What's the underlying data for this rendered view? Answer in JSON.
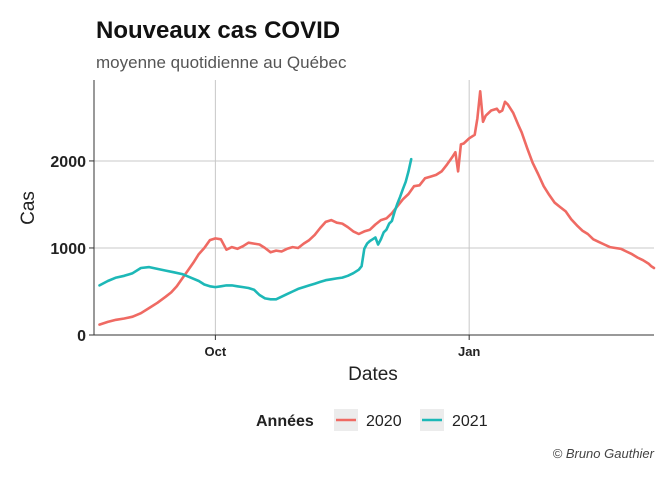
{
  "chart_data": {
    "type": "line",
    "title": "Nouveaux cas COVID",
    "subtitle": "moyenne quotidienne au Québec",
    "xlabel": "Dates",
    "ylabel": "Cas",
    "x_unit": "days from Aug 18 to Mar 8 (season-aligned)",
    "xlim": [
      0,
      203
    ],
    "ylim": [
      0,
      2930
    ],
    "y_ticks": [
      0,
      1000,
      2000
    ],
    "x_ticks": [
      {
        "value": 44,
        "label": "Oct"
      },
      {
        "value": 136,
        "label": "Jan"
      }
    ],
    "grid": true,
    "legend": {
      "title": "Années",
      "position": "bottom"
    },
    "caption": "© Bruno Gauthier",
    "series": [
      {
        "name": "2020",
        "color": "#ef6a63",
        "points": [
          [
            2,
            120
          ],
          [
            5,
            150
          ],
          [
            8,
            175
          ],
          [
            11,
            190
          ],
          [
            14,
            210
          ],
          [
            17,
            250
          ],
          [
            20,
            310
          ],
          [
            23,
            370
          ],
          [
            26,
            440
          ],
          [
            28,
            490
          ],
          [
            30,
            560
          ],
          [
            32,
            650
          ],
          [
            34,
            740
          ],
          [
            36,
            830
          ],
          [
            38,
            930
          ],
          [
            40,
            1000
          ],
          [
            42,
            1090
          ],
          [
            44,
            1110
          ],
          [
            46,
            1100
          ],
          [
            48,
            980
          ],
          [
            50,
            1010
          ],
          [
            52,
            990
          ],
          [
            54,
            1020
          ],
          [
            56,
            1060
          ],
          [
            58,
            1050
          ],
          [
            60,
            1040
          ],
          [
            62,
            1000
          ],
          [
            64,
            950
          ],
          [
            66,
            970
          ],
          [
            68,
            960
          ],
          [
            70,
            990
          ],
          [
            72,
            1010
          ],
          [
            74,
            1000
          ],
          [
            76,
            1050
          ],
          [
            78,
            1090
          ],
          [
            80,
            1150
          ],
          [
            82,
            1230
          ],
          [
            84,
            1300
          ],
          [
            86,
            1320
          ],
          [
            88,
            1290
          ],
          [
            90,
            1280
          ],
          [
            92,
            1240
          ],
          [
            94,
            1190
          ],
          [
            96,
            1160
          ],
          [
            98,
            1190
          ],
          [
            100,
            1210
          ],
          [
            102,
            1270
          ],
          [
            104,
            1320
          ],
          [
            106,
            1340
          ],
          [
            108,
            1400
          ],
          [
            110,
            1480
          ],
          [
            112,
            1560
          ],
          [
            114,
            1620
          ],
          [
            116,
            1710
          ],
          [
            118,
            1720
          ],
          [
            120,
            1800
          ],
          [
            122,
            1820
          ],
          [
            124,
            1840
          ],
          [
            126,
            1880
          ],
          [
            128,
            1960
          ],
          [
            130,
            2050
          ],
          [
            131,
            2100
          ],
          [
            132,
            1880
          ],
          [
            133,
            2190
          ],
          [
            134,
            2200
          ],
          [
            136,
            2260
          ],
          [
            138,
            2300
          ],
          [
            139,
            2490
          ],
          [
            140,
            2800
          ],
          [
            141,
            2450
          ],
          [
            142,
            2520
          ],
          [
            144,
            2580
          ],
          [
            146,
            2600
          ],
          [
            147,
            2560
          ],
          [
            148,
            2580
          ],
          [
            149,
            2680
          ],
          [
            150,
            2650
          ],
          [
            152,
            2550
          ],
          [
            154,
            2400
          ],
          [
            155,
            2330
          ],
          [
            157,
            2150
          ],
          [
            159,
            1980
          ],
          [
            161,
            1850
          ],
          [
            163,
            1710
          ],
          [
            165,
            1610
          ],
          [
            167,
            1520
          ],
          [
            169,
            1470
          ],
          [
            171,
            1420
          ],
          [
            173,
            1330
          ],
          [
            175,
            1260
          ],
          [
            177,
            1200
          ],
          [
            179,
            1160
          ],
          [
            181,
            1100
          ],
          [
            183,
            1070
          ],
          [
            185,
            1040
          ],
          [
            187,
            1010
          ],
          [
            189,
            1000
          ],
          [
            191,
            990
          ],
          [
            193,
            960
          ],
          [
            195,
            930
          ],
          [
            197,
            890
          ],
          [
            199,
            860
          ],
          [
            201,
            820
          ],
          [
            202,
            790
          ],
          [
            203,
            770
          ]
        ]
      },
      {
        "name": "2021",
        "color": "#1db8b7",
        "points": [
          [
            2,
            570
          ],
          [
            5,
            620
          ],
          [
            8,
            660
          ],
          [
            11,
            680
          ],
          [
            14,
            710
          ],
          [
            17,
            770
          ],
          [
            20,
            780
          ],
          [
            23,
            760
          ],
          [
            26,
            740
          ],
          [
            29,
            720
          ],
          [
            32,
            700
          ],
          [
            35,
            660
          ],
          [
            38,
            620
          ],
          [
            40,
            580
          ],
          [
            42,
            560
          ],
          [
            44,
            550
          ],
          [
            46,
            560
          ],
          [
            48,
            570
          ],
          [
            50,
            570
          ],
          [
            52,
            560
          ],
          [
            54,
            550
          ],
          [
            56,
            540
          ],
          [
            58,
            520
          ],
          [
            59,
            490
          ],
          [
            60,
            460
          ],
          [
            62,
            420
          ],
          [
            64,
            410
          ],
          [
            66,
            410
          ],
          [
            68,
            440
          ],
          [
            70,
            470
          ],
          [
            72,
            500
          ],
          [
            74,
            530
          ],
          [
            76,
            550
          ],
          [
            78,
            570
          ],
          [
            80,
            590
          ],
          [
            82,
            610
          ],
          [
            84,
            630
          ],
          [
            86,
            640
          ],
          [
            88,
            650
          ],
          [
            90,
            660
          ],
          [
            92,
            680
          ],
          [
            94,
            710
          ],
          [
            96,
            750
          ],
          [
            97,
            790
          ],
          [
            98,
            990
          ],
          [
            99,
            1050
          ],
          [
            100,
            1080
          ],
          [
            101,
            1100
          ],
          [
            102,
            1120
          ],
          [
            103,
            1040
          ],
          [
            104,
            1100
          ],
          [
            105,
            1180
          ],
          [
            106,
            1210
          ],
          [
            107,
            1280
          ],
          [
            108,
            1310
          ],
          [
            109,
            1420
          ],
          [
            110,
            1510
          ],
          [
            111,
            1590
          ],
          [
            112,
            1680
          ],
          [
            113,
            1760
          ],
          [
            114,
            1880
          ],
          [
            115,
            2020
          ]
        ]
      }
    ]
  }
}
